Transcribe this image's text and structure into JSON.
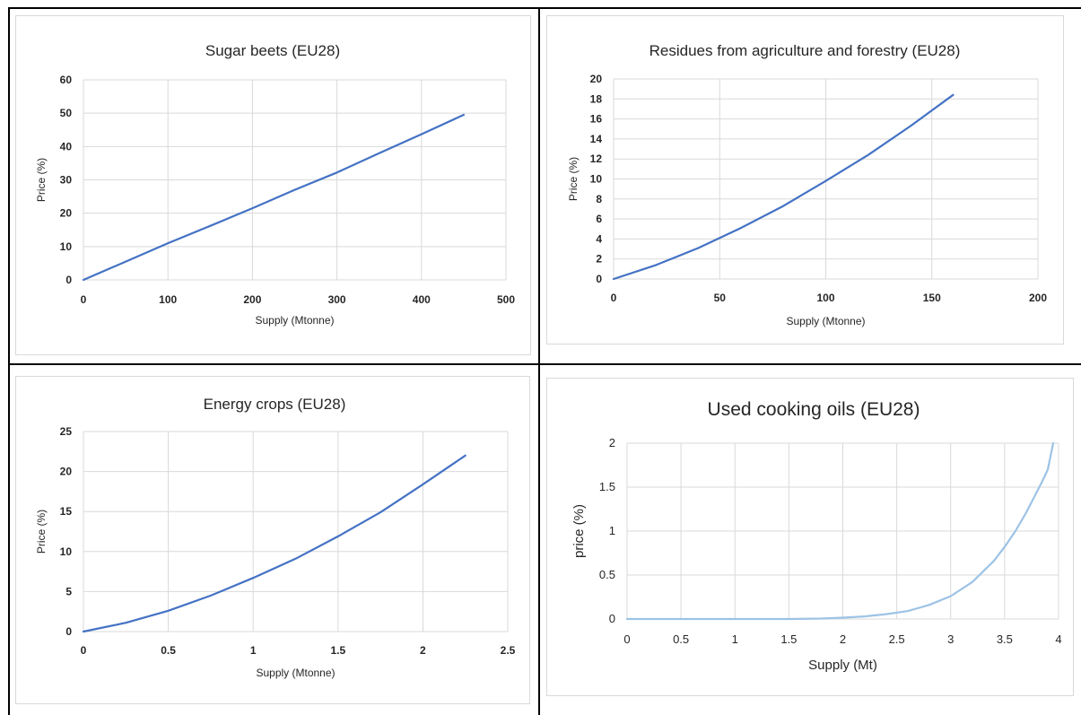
{
  "chart_data": [
    {
      "type": "line",
      "title": "Sugar beets (EU28)",
      "xlabel": "Supply (Mtonne)",
      "ylabel": "Price (%)",
      "xlim": [
        0,
        500
      ],
      "ylim": [
        0,
        60
      ],
      "xticks": [
        "0",
        "100",
        "200",
        "300",
        "400",
        "500"
      ],
      "yticks": [
        "0",
        "10",
        "20",
        "30",
        "40",
        "50",
        "60"
      ],
      "grid": true,
      "series": [
        {
          "color": "#4472C4",
          "x": [
            0,
            50,
            100,
            150,
            200,
            250,
            300,
            350,
            400,
            450
          ],
          "y": [
            0,
            5.5,
            11,
            16.2,
            21.5,
            27,
            32.2,
            38,
            43.7,
            49.5
          ]
        }
      ]
    },
    {
      "type": "line",
      "title": "Residues from agriculture and forestry (EU28)",
      "xlabel": "Supply (Mtonne)",
      "ylabel": "Price (%)",
      "xlim": [
        0,
        200
      ],
      "ylim": [
        0,
        20
      ],
      "xticks": [
        "0",
        "50",
        "100",
        "150",
        "200"
      ],
      "yticks": [
        "0",
        "2",
        "4",
        "6",
        "8",
        "10",
        "12",
        "14",
        "16",
        "18",
        "20"
      ],
      "grid": true,
      "series": [
        {
          "color": "#4472C4",
          "x": [
            0,
            20,
            40,
            60,
            80,
            100,
            120,
            140,
            160
          ],
          "y": [
            0,
            1.4,
            3.1,
            5.1,
            7.3,
            9.8,
            12.4,
            15.3,
            18.4
          ]
        }
      ]
    },
    {
      "type": "line",
      "title": "Energy crops (EU28)",
      "xlabel": "Supply (Mtonne)",
      "ylabel": "Price (%)",
      "xlim": [
        0,
        2.5
      ],
      "ylim": [
        0,
        25
      ],
      "xticks": [
        "0",
        "0.5",
        "1",
        "1.5",
        "2",
        "2.5"
      ],
      "yticks": [
        "0",
        "5",
        "10",
        "15",
        "20",
        "25"
      ],
      "grid": true,
      "series": [
        {
          "color": "#4472C4",
          "x": [
            0,
            0.25,
            0.5,
            0.75,
            1,
            1.25,
            1.5,
            1.75,
            2,
            2.25
          ],
          "y": [
            0,
            1.1,
            2.6,
            4.5,
            6.7,
            9.1,
            11.9,
            14.9,
            18.4,
            22
          ]
        }
      ]
    },
    {
      "type": "line",
      "title": "Used cooking oils (EU28)",
      "xlabel": "Supply (Mt)",
      "ylabel": "price (%)",
      "xlim": [
        0,
        4
      ],
      "ylim": [
        0,
        2
      ],
      "xticks": [
        "0",
        "0.5",
        "1",
        "1.5",
        "2",
        "2.5",
        "3",
        "3.5",
        "4"
      ],
      "yticks": [
        "0",
        "0.5",
        "1",
        "1.5",
        "2"
      ],
      "grid": true,
      "series": [
        {
          "color": "#9DC3E6",
          "x": [
            0,
            0.5,
            1,
            1.5,
            1.8,
            2,
            2.2,
            2.4,
            2.6,
            2.8,
            3,
            3.2,
            3.4,
            3.5,
            3.6,
            3.7,
            3.8,
            3.85,
            3.9,
            3.95
          ],
          "y": [
            0,
            0,
            0,
            0,
            0.005,
            0.015,
            0.03,
            0.055,
            0.09,
            0.16,
            0.26,
            0.42,
            0.66,
            0.82,
            1.0,
            1.21,
            1.45,
            1.57,
            1.7,
            2.0
          ]
        }
      ]
    }
  ]
}
